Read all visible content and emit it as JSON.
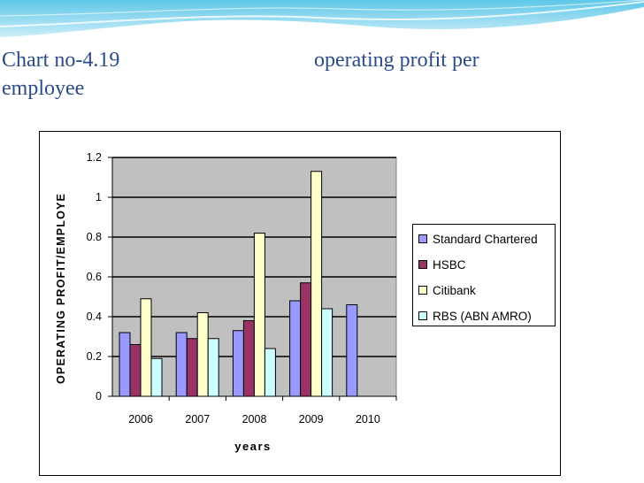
{
  "slide": {
    "title_left": "Chart no-4.19",
    "title_right": "operating profit per",
    "title_line2": "employee"
  },
  "chart_data": {
    "type": "bar",
    "categories": [
      "2006",
      "2007",
      "2008",
      "2009",
      "2010"
    ],
    "series": [
      {
        "name": "Standard Chartered",
        "color": "#9999ff",
        "values": [
          0.32,
          0.32,
          0.33,
          0.48,
          0.46
        ]
      },
      {
        "name": "HSBC",
        "color": "#993366",
        "values": [
          0.26,
          0.29,
          0.38,
          0.57,
          null
        ]
      },
      {
        "name": "Citibank",
        "color": "#ffffcc",
        "values": [
          0.49,
          0.42,
          0.82,
          1.13,
          null
        ]
      },
      {
        "name": "RBS (ABN AMRO)",
        "color": "#ccffff",
        "values": [
          0.19,
          0.29,
          0.24,
          0.44,
          null
        ]
      }
    ],
    "xlabel": "years",
    "ylabel": "OPERATING PROFIT/EMPLOYE",
    "ylim": [
      0,
      1.2
    ],
    "yticks": [
      "0",
      "0.2",
      "0.4",
      "0.6",
      "0.8",
      "1",
      "1.2"
    ],
    "plot_background": "#c0c0c0",
    "grid": true,
    "legend_position": "right"
  }
}
